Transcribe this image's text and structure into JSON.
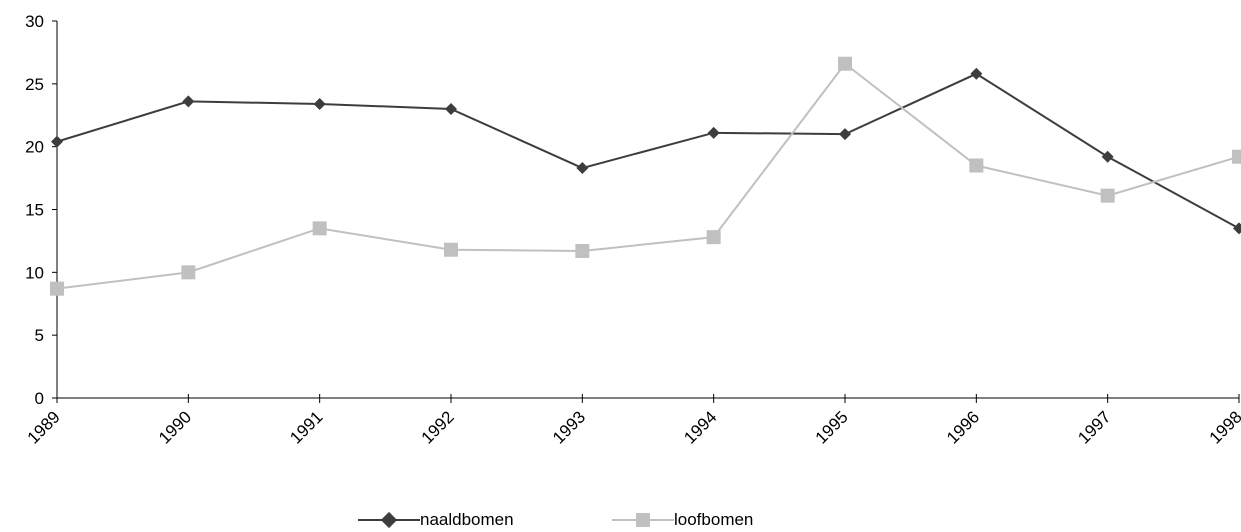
{
  "chart_data": {
    "type": "line",
    "title": "",
    "xlabel": "",
    "ylabel": "",
    "categories": [
      "1989",
      "1990",
      "1991",
      "1992",
      "1993",
      "1994",
      "1995",
      "1996",
      "1997",
      "1998"
    ],
    "ylim": [
      0,
      30
    ],
    "yticks": [
      "0",
      "5",
      "10",
      "15",
      "20",
      "25",
      "30"
    ],
    "grid": false,
    "legend_position": "bottom",
    "series": [
      {
        "name": "naaldbomen",
        "marker": "diamond",
        "color": "#3d3d3d",
        "values": [
          20.4,
          23.6,
          23.4,
          23.0,
          18.3,
          21.1,
          21.0,
          25.8,
          19.2,
          13.5
        ]
      },
      {
        "name": "loofbomen",
        "marker": "square",
        "color": "#c0c0c0",
        "values": [
          8.7,
          10.0,
          13.5,
          11.8,
          11.7,
          12.8,
          26.6,
          18.5,
          16.1,
          19.2
        ]
      }
    ]
  }
}
